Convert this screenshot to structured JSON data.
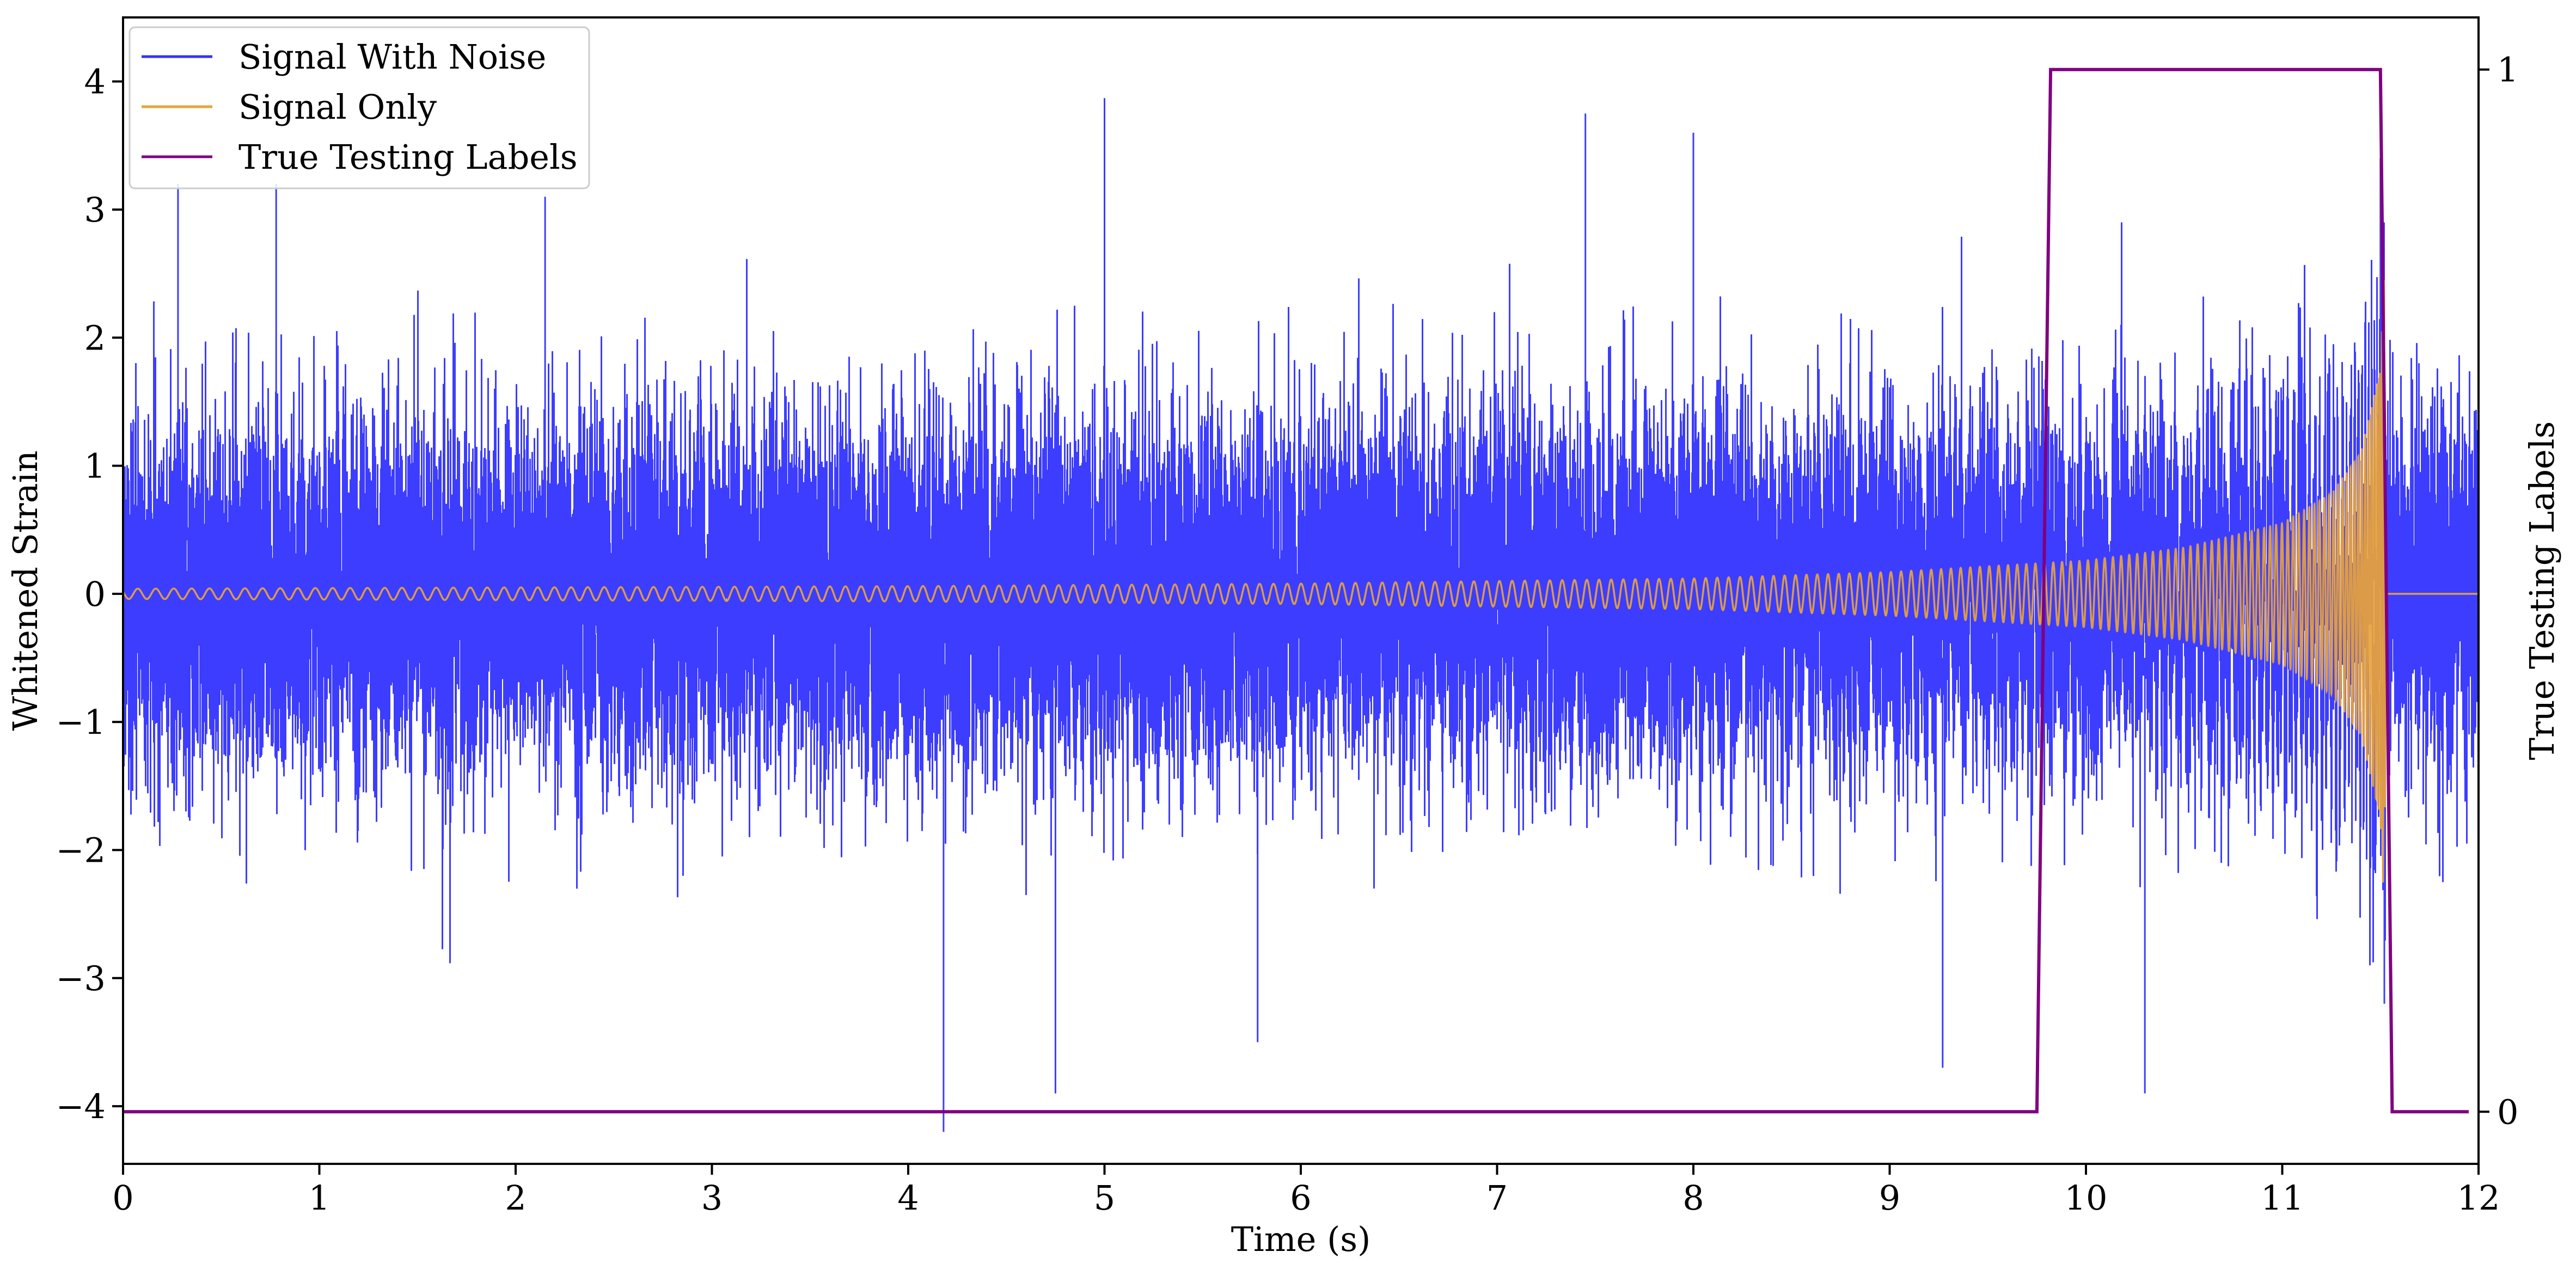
{
  "chart_data": {
    "type": "line",
    "xlabel": "Time (s)",
    "ylabel_left": "Whitened Strain",
    "ylabel_right": "True Testing Labels",
    "xlim": [
      0,
      12
    ],
    "ylim_left": [
      -4.45,
      4.5
    ],
    "ylim_right": [
      -0.05,
      1.05
    ],
    "x_ticks": [
      0,
      1,
      2,
      3,
      4,
      5,
      6,
      7,
      8,
      9,
      10,
      11,
      12
    ],
    "x_tick_labels": [
      "0",
      "1",
      "2",
      "3",
      "4",
      "5",
      "6",
      "7",
      "8",
      "9",
      "10",
      "11",
      "12"
    ],
    "y_ticks_left": [
      -4,
      -3,
      -2,
      -1,
      0,
      1,
      2,
      3,
      4
    ],
    "y_tick_labels_left": [
      "−4",
      "−3",
      "−2",
      "−1",
      "0",
      "1",
      "2",
      "3",
      "4"
    ],
    "y_ticks_right": [
      0,
      1
    ],
    "y_tick_labels_right": [
      "0",
      "1"
    ],
    "grid": false,
    "legend_position": "top-left",
    "colors": {
      "noise": "#3333ff",
      "signal": "#e8a33a",
      "labels": "#800080"
    },
    "series": [
      {
        "name": "Signal With Noise",
        "axis": "left",
        "description_stats": {
          "typical_range": [
            -2.0,
            2.0
          ],
          "max": 3.87,
          "min": -4.2
        },
        "spikes": [
          [
            0.28,
            3.2
          ],
          [
            0.78,
            3.2
          ],
          [
            2.15,
            3.1
          ],
          [
            4.18,
            -4.2
          ],
          [
            4.75,
            -3.9
          ],
          [
            5.0,
            3.87
          ],
          [
            5.78,
            -3.5
          ],
          [
            7.45,
            3.75
          ],
          [
            8.0,
            3.6
          ],
          [
            9.27,
            -3.7
          ],
          [
            10.3,
            -3.9
          ],
          [
            11.5,
            3.4
          ],
          [
            11.52,
            -3.2
          ]
        ]
      },
      {
        "name": "Signal Only",
        "axis": "left",
        "envelope": [
          [
            0,
            0.04
          ],
          [
            2,
            0.05
          ],
          [
            4,
            0.06
          ],
          [
            6,
            0.08
          ],
          [
            8,
            0.12
          ],
          [
            9,
            0.17
          ],
          [
            10,
            0.26
          ],
          [
            10.5,
            0.36
          ],
          [
            11,
            0.55
          ],
          [
            11.25,
            0.78
          ],
          [
            11.4,
            1.1
          ],
          [
            11.5,
            1.75
          ],
          [
            11.52,
            2.5
          ],
          [
            11.53,
            0
          ]
        ],
        "end_time": 11.53
      },
      {
        "name": "True Testing Labels",
        "axis": "right",
        "x": [
          0,
          9.75,
          9.82,
          11.5,
          11.56,
          11.95
        ],
        "values": [
          0,
          0,
          1,
          1,
          0,
          0
        ]
      }
    ]
  }
}
